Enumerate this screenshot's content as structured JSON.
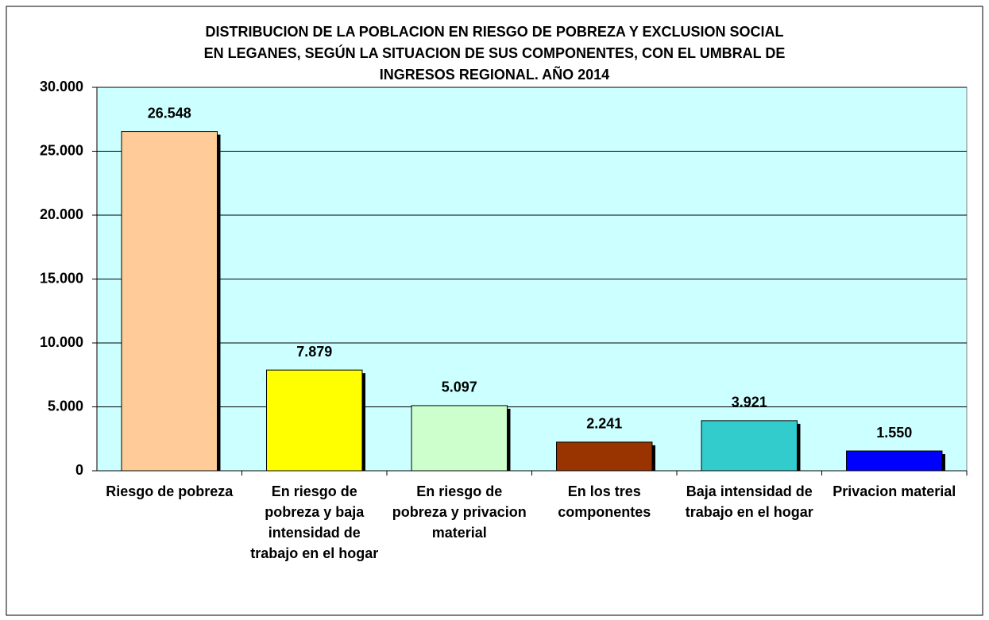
{
  "chart_data": {
    "type": "bar",
    "title": [
      "DISTRIBUCION DE LA POBLACION EN RIESGO DE POBREZA Y EXCLUSION SOCIAL",
      "EN LEGANES, SEGÚN LA SITUACION DE SUS COMPONENTES, CON EL UMBRAL DE",
      "INGRESOS REGIONAL. AÑO 2014"
    ],
    "categories": [
      "Riesgo de pobreza",
      "En riesgo de pobreza y baja intensidad de trabajo en el hogar",
      "En riesgo de pobreza y privacion material",
      "En los tres componentes",
      "Baja intensidad de trabajo en el hogar",
      "Privacion material"
    ],
    "values": [
      26548,
      7879,
      5097,
      2241,
      3921,
      1550
    ],
    "value_labels": [
      "26.548",
      "7.879",
      "5.097",
      "2.241",
      "3.921",
      "1.550"
    ],
    "colors": [
      "#ffcc99",
      "#ffff00",
      "#ccffcc",
      "#993300",
      "#33cccc",
      "#0000ff"
    ],
    "ylim": [
      0,
      30000
    ],
    "yticks": [
      0,
      {
        "value": 5000,
        "label": "5.000"
      },
      {
        "value": 10000,
        "label": "10.000"
      },
      {
        "value": 15000,
        "label": "15.000"
      },
      {
        "value": 20000,
        "label": "20.000"
      },
      {
        "value": 25000,
        "label": "25.000"
      },
      {
        "value": 30000,
        "label": "30.000"
      }
    ],
    "grid": true,
    "plot_background": "#ccffff"
  }
}
